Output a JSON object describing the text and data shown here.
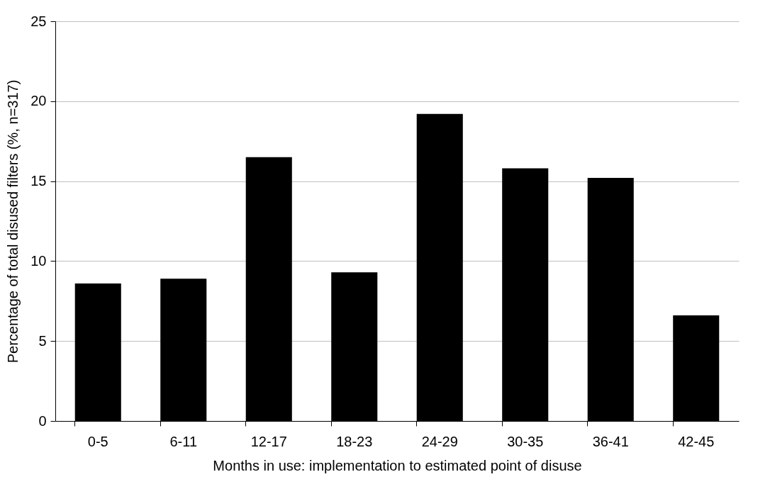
{
  "chart_data": {
    "type": "bar",
    "xlabel": "Months in use: implementation to estimated point of disuse",
    "ylabel": "Percentage of total disused filters (%, n=317)",
    "categories": [
      "0-5",
      "6-11",
      "12-17",
      "18-23",
      "24-29",
      "30-35",
      "36-41",
      "42-45"
    ],
    "values": [
      8.6,
      8.9,
      16.5,
      9.3,
      19.2,
      15.8,
      15.2,
      6.6
    ],
    "color": "#000000",
    "ylim": [
      0,
      25
    ],
    "yticks": [
      0,
      5,
      10,
      15,
      20,
      25
    ],
    "grid": "y"
  }
}
